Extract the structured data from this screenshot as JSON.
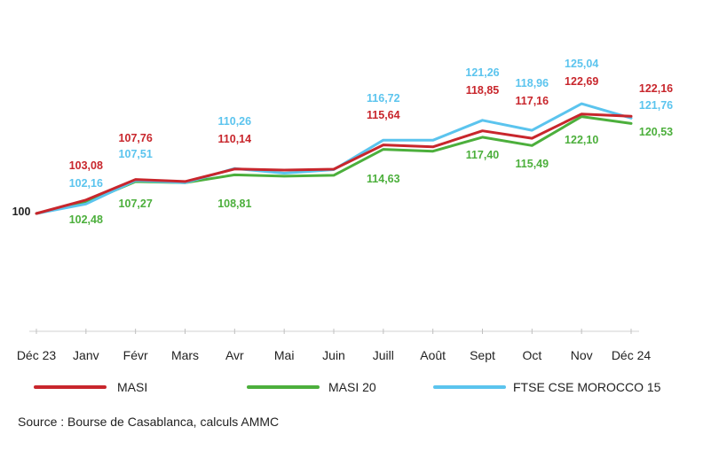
{
  "chart_data": {
    "type": "line",
    "categories": [
      "Déc 23",
      "Janv",
      "Févr",
      "Mars",
      "Avr",
      "Mai",
      "Juin",
      "Juill",
      "Août",
      "Sept",
      "Oct",
      "Nov",
      "Déc 24"
    ],
    "start_label": "100",
    "ylim": [
      80,
      128
    ],
    "grid": false,
    "legend_position": "bottom",
    "series": [
      {
        "name": "MASI",
        "color": "#c8262c",
        "values": [
          100,
          103.08,
          107.76,
          107.3,
          110.14,
          109.9,
          110.1,
          115.64,
          115.2,
          118.85,
          117.16,
          122.69,
          122.16
        ],
        "labels": [
          "",
          "103,08",
          "107,76",
          "",
          "110,14",
          "",
          "",
          "115,64",
          "",
          "118,85",
          "117,16",
          "122,69",
          "122,16"
        ]
      },
      {
        "name": "MASI 20",
        "color": "#4caf3c",
        "values": [
          100,
          102.48,
          107.27,
          107.0,
          108.81,
          108.5,
          108.7,
          114.63,
          114.2,
          117.4,
          115.49,
          122.1,
          120.53
        ],
        "labels": [
          "",
          "102,48",
          "107,27",
          "",
          "108,81",
          "",
          "",
          "114,63",
          "",
          "117,40",
          "115,49",
          "122,10",
          "120,53"
        ]
      },
      {
        "name": "FTSE CSE MOROCCO 15",
        "color": "#5bc4ee",
        "values": [
          100,
          102.16,
          107.51,
          107.0,
          110.26,
          109.2,
          110.0,
          116.72,
          116.7,
          121.26,
          118.96,
          125.04,
          121.76
        ],
        "labels": [
          "",
          "102,16",
          "107,51",
          "",
          "110,26",
          "",
          "",
          "116,72",
          "",
          "121,26",
          "118,96",
          "125,04",
          "121,76"
        ]
      }
    ]
  },
  "source": "Source : Bourse de Casablanca, calculs AMMC"
}
